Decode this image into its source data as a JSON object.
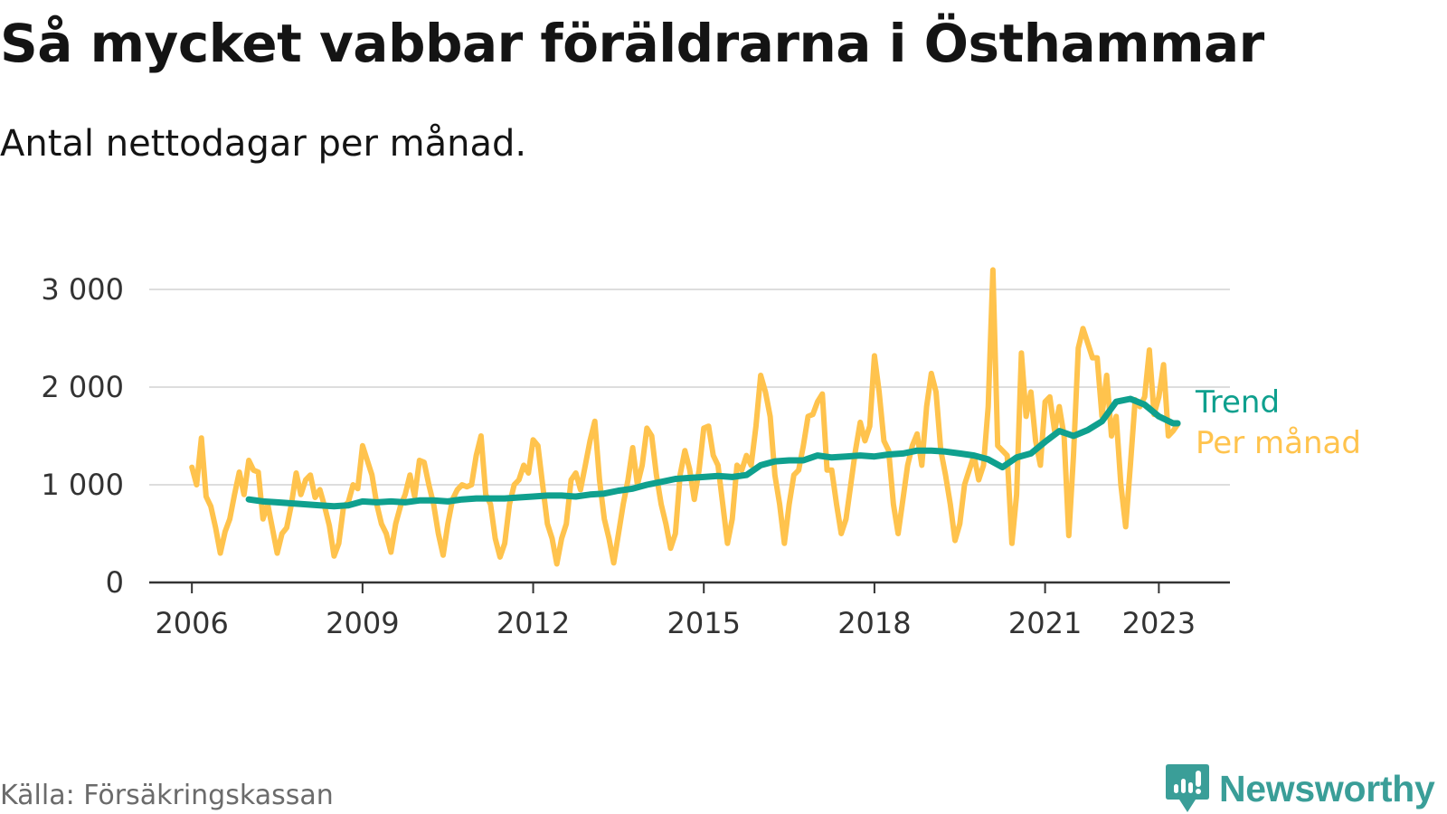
{
  "title": "Så mycket vabbar föräldrarna i Östhammar",
  "subtitle": "Antal nettodagar per månad.",
  "source": "Källa: Försäkringskassan",
  "brand": {
    "name": "Newsworthy",
    "icon": "newsworthy-logo-icon",
    "color": "#3a9e98"
  },
  "colors": {
    "monthly": "#ffc34d",
    "trend": "#0fa08e",
    "grid": "#dddddd",
    "axis": "#333333"
  },
  "chart_data": {
    "type": "line",
    "title": "Så mycket vabbar föräldrarna i Östhammar",
    "subtitle": "Antal nettodagar per månad.",
    "xlabel": "",
    "ylabel": "",
    "x_range": [
      2005.25,
      2024.25
    ],
    "ylim": [
      0,
      3000
    ],
    "y_ticks": [
      0,
      1000,
      2000,
      3000
    ],
    "y_tick_labels": [
      "0",
      "1 000",
      "2 000",
      "3 000"
    ],
    "x_ticks": [
      2006,
      2009,
      2012,
      2015,
      2018,
      2021,
      2023
    ],
    "x_tick_labels": [
      "2006",
      "2009",
      "2012",
      "2015",
      "2018",
      "2021",
      "2023"
    ],
    "grid": true,
    "series": [
      {
        "name": "Per månad",
        "label": "Per månad",
        "x": [
          2006.0,
          2006.0833,
          2006.1667,
          2006.25,
          2006.3333,
          2006.4167,
          2006.5,
          2006.5833,
          2006.6667,
          2006.75,
          2006.8333,
          2006.9167,
          2007.0,
          2007.0833,
          2007.1667,
          2007.25,
          2007.3333,
          2007.4167,
          2007.5,
          2007.5833,
          2007.6667,
          2007.75,
          2007.8333,
          2007.9167,
          2008.0,
          2008.0833,
          2008.1667,
          2008.25,
          2008.3333,
          2008.4167,
          2008.5,
          2008.5833,
          2008.6667,
          2008.75,
          2008.8333,
          2008.9167,
          2009.0,
          2009.0833,
          2009.1667,
          2009.25,
          2009.3333,
          2009.4167,
          2009.5,
          2009.5833,
          2009.6667,
          2009.75,
          2009.8333,
          2009.9167,
          2010.0,
          2010.0833,
          2010.1667,
          2010.25,
          2010.3333,
          2010.4167,
          2010.5,
          2010.5833,
          2010.6667,
          2010.75,
          2010.8333,
          2010.9167,
          2011.0,
          2011.0833,
          2011.1667,
          2011.25,
          2011.3333,
          2011.4167,
          2011.5,
          2011.5833,
          2011.6667,
          2011.75,
          2011.8333,
          2011.9167,
          2012.0,
          2012.0833,
          2012.1667,
          2012.25,
          2012.3333,
          2012.4167,
          2012.5,
          2012.5833,
          2012.6667,
          2012.75,
          2012.8333,
          2012.9167,
          2013.0,
          2013.0833,
          2013.1667,
          2013.25,
          2013.3333,
          2013.4167,
          2013.5,
          2013.5833,
          2013.6667,
          2013.75,
          2013.8333,
          2013.9167,
          2014.0,
          2014.0833,
          2014.1667,
          2014.25,
          2014.3333,
          2014.4167,
          2014.5,
          2014.5833,
          2014.6667,
          2014.75,
          2014.8333,
          2014.9167,
          2015.0,
          2015.0833,
          2015.1667,
          2015.25,
          2015.3333,
          2015.4167,
          2015.5,
          2015.5833,
          2015.6667,
          2015.75,
          2015.8333,
          2015.9167,
          2016.0,
          2016.0833,
          2016.1667,
          2016.25,
          2016.3333,
          2016.4167,
          2016.5,
          2016.5833,
          2016.6667,
          2016.75,
          2016.8333,
          2016.9167,
          2017.0,
          2017.0833,
          2017.1667,
          2017.25,
          2017.3333,
          2017.4167,
          2017.5,
          2017.5833,
          2017.6667,
          2017.75,
          2017.8333,
          2017.9167,
          2018.0,
          2018.0833,
          2018.1667,
          2018.25,
          2018.3333,
          2018.4167,
          2018.5,
          2018.5833,
          2018.6667,
          2018.75,
          2018.8333,
          2018.9167,
          2019.0,
          2019.0833,
          2019.1667,
          2019.25,
          2019.3333,
          2019.4167,
          2019.5,
          2019.5833,
          2019.6667,
          2019.75,
          2019.8333,
          2019.9167,
          2020.0,
          2020.0833,
          2020.1667,
          2020.25,
          2020.3333,
          2020.4167,
          2020.5,
          2020.5833,
          2020.6667,
          2020.75,
          2020.8333,
          2020.9167,
          2021.0,
          2021.0833,
          2021.1667,
          2021.25,
          2021.3333,
          2021.4167,
          2021.5,
          2021.5833,
          2021.6667,
          2021.75,
          2021.8333,
          2021.9167,
          2022.0,
          2022.0833,
          2022.1667,
          2022.25,
          2022.3333,
          2022.4167,
          2022.5,
          2022.5833,
          2022.6667,
          2022.75,
          2022.8333,
          2022.9167,
          2023.0,
          2023.0833,
          2023.1667,
          2023.25,
          2023.3333
        ],
        "values": [
          1180,
          1000,
          1480,
          880,
          780,
          560,
          300,
          520,
          650,
          900,
          1130,
          900,
          1250,
          1150,
          1130,
          650,
          800,
          550,
          300,
          500,
          560,
          800,
          1120,
          900,
          1050,
          1100,
          870,
          950,
          780,
          580,
          270,
          400,
          780,
          820,
          1000,
          960,
          1400,
          1250,
          1100,
          800,
          600,
          500,
          310,
          600,
          780,
          900,
          1100,
          880,
          1250,
          1230,
          1000,
          800,
          500,
          280,
          600,
          850,
          950,
          1000,
          980,
          1000,
          1300,
          1500,
          900,
          800,
          450,
          260,
          400,
          800,
          1000,
          1050,
          1200,
          1120,
          1460,
          1400,
          1000,
          600,
          450,
          190,
          450,
          600,
          1050,
          1120,
          950,
          1200,
          1450,
          1650,
          1050,
          650,
          450,
          200,
          500,
          800,
          1050,
          1380,
          1000,
          1200,
          1580,
          1500,
          1100,
          800,
          600,
          350,
          500,
          1100,
          1350,
          1160,
          850,
          1150,
          1580,
          1600,
          1300,
          1200,
          800,
          400,
          650,
          1200,
          1150,
          1300,
          1200,
          1600,
          2120,
          1950,
          1700,
          1100,
          800,
          400,
          800,
          1100,
          1150,
          1400,
          1700,
          1720,
          1850,
          1930,
          1150,
          1150,
          800,
          500,
          650,
          1000,
          1350,
          1640,
          1450,
          1600,
          2320,
          1950,
          1450,
          1350,
          800,
          500,
          850,
          1200,
          1400,
          1520,
          1200,
          1800,
          2140,
          1950,
          1350,
          1100,
          800,
          430,
          600,
          1000,
          1150,
          1300,
          1050,
          1200,
          1800,
          3200,
          1400,
          1350,
          1300,
          400,
          900,
          2350,
          1700,
          1950,
          1450,
          1200,
          1850,
          1900,
          1550,
          1800,
          1500,
          480,
          1300,
          2400,
          2600,
          2450,
          2300,
          2300,
          1700,
          2120,
          1500,
          1700,
          1000,
          570,
          1200,
          1870,
          1800,
          1900,
          2380,
          1720,
          1900,
          2230,
          1500,
          1550,
          1620
        ]
      },
      {
        "name": "Trend",
        "label": "Trend",
        "x": [
          2007.0,
          2007.25,
          2007.5,
          2007.75,
          2008.0,
          2008.25,
          2008.5,
          2008.75,
          2009.0,
          2009.25,
          2009.5,
          2009.75,
          2010.0,
          2010.25,
          2010.5,
          2010.75,
          2011.0,
          2011.25,
          2011.5,
          2011.75,
          2012.0,
          2012.25,
          2012.5,
          2012.75,
          2013.0,
          2013.25,
          2013.5,
          2013.75,
          2014.0,
          2014.25,
          2014.5,
          2014.75,
          2015.0,
          2015.25,
          2015.5,
          2015.75,
          2016.0,
          2016.25,
          2016.5,
          2016.75,
          2017.0,
          2017.25,
          2017.5,
          2017.75,
          2018.0,
          2018.25,
          2018.5,
          2018.75,
          2019.0,
          2019.25,
          2019.5,
          2019.75,
          2020.0,
          2020.25,
          2020.5,
          2020.75,
          2021.0,
          2021.25,
          2021.5,
          2021.75,
          2022.0,
          2022.25,
          2022.5,
          2022.75,
          2023.0,
          2023.25,
          2023.33
        ],
        "values": [
          850,
          830,
          820,
          810,
          800,
          790,
          780,
          790,
          830,
          820,
          830,
          820,
          840,
          840,
          830,
          850,
          860,
          860,
          860,
          870,
          880,
          890,
          890,
          880,
          900,
          910,
          940,
          960,
          1000,
          1030,
          1060,
          1070,
          1080,
          1090,
          1080,
          1100,
          1200,
          1240,
          1250,
          1250,
          1300,
          1280,
          1290,
          1300,
          1290,
          1310,
          1320,
          1350,
          1350,
          1340,
          1320,
          1300,
          1260,
          1180,
          1280,
          1320,
          1440,
          1550,
          1500,
          1560,
          1650,
          1850,
          1880,
          1820,
          1700,
          1630,
          1630
        ]
      }
    ]
  }
}
